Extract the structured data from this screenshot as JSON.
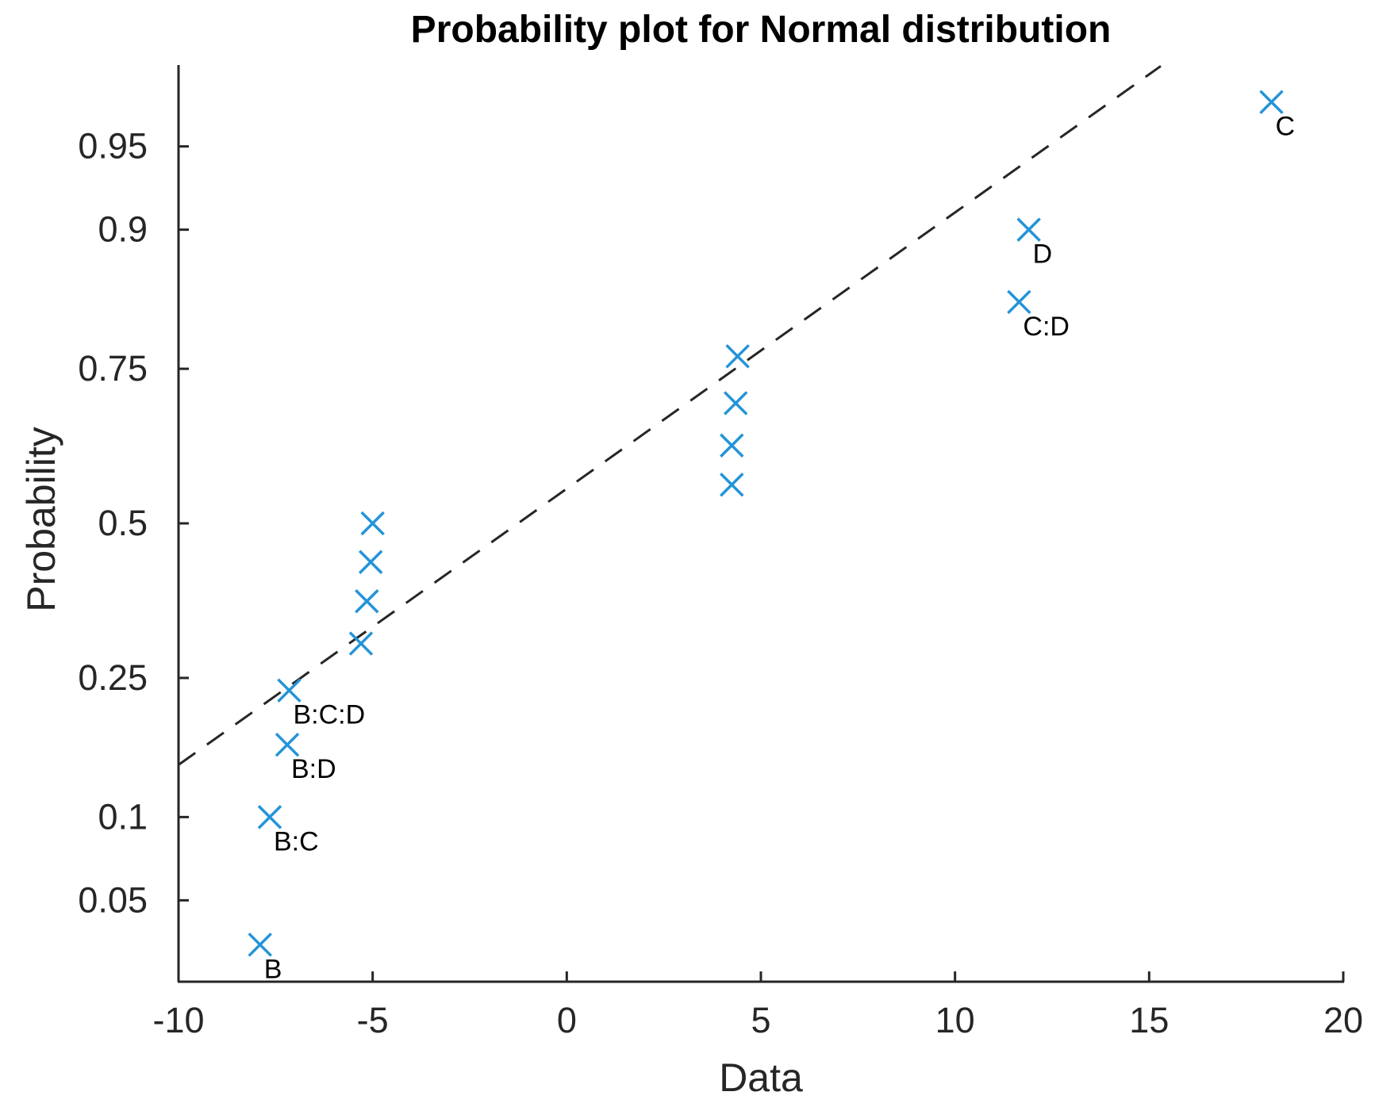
{
  "chart_data": {
    "type": "scatter",
    "title": "Probability plot for Normal distribution",
    "xlabel": "Data",
    "ylabel": "Probability",
    "x_ticks": [
      -10,
      -5,
      0,
      5,
      10,
      15,
      20
    ],
    "y_ticks": [
      0.05,
      0.1,
      0.25,
      0.5,
      0.75,
      0.9,
      0.95
    ],
    "xlim": [
      -10,
      20
    ],
    "y_scale": "normal-probability",
    "prob_lim": [
      0.023,
      0.977
    ],
    "grid": false,
    "legend": "none",
    "marker": "x",
    "marker_color": "#2394d8",
    "axis_color": "#262626",
    "label_color": "#000000",
    "points": [
      {
        "x": -7.9,
        "p": 0.033,
        "label": "B"
      },
      {
        "x": -7.65,
        "p": 0.1,
        "label": "B:C"
      },
      {
        "x": -7.2,
        "p": 0.167,
        "label": "B:D"
      },
      {
        "x": -7.15,
        "p": 0.233,
        "label": "B:C:D"
      },
      {
        "x": -5.3,
        "p": 0.3
      },
      {
        "x": -5.15,
        "p": 0.367
      },
      {
        "x": -5.05,
        "p": 0.433
      },
      {
        "x": -5.0,
        "p": 0.5
      },
      {
        "x": 4.25,
        "p": 0.567
      },
      {
        "x": 4.25,
        "p": 0.633
      },
      {
        "x": 4.35,
        "p": 0.7
      },
      {
        "x": 4.4,
        "p": 0.767
      },
      {
        "x": 11.65,
        "p": 0.833,
        "label": "C:D"
      },
      {
        "x": 11.9,
        "p": 0.9,
        "label": "D"
      },
      {
        "x": 18.15,
        "p": 0.967,
        "label": "C"
      }
    ],
    "fit_line": {
      "style": "dashed",
      "x": [
        -10,
        15.3
      ],
      "p": [
        0.146,
        0.977
      ]
    }
  }
}
